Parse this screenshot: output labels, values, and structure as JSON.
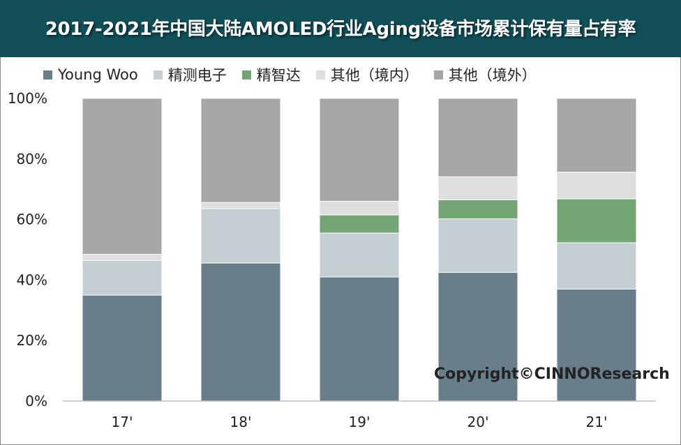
{
  "title": "2017-2021年中国大陆AMOLED行业Aging设备市场累计保有量占有率",
  "copyright": "Copyright©CINNOResearch",
  "colors": {
    "title_bar": "#114f59",
    "young_woo": "#687e8a",
    "jingce": "#c4cfd3",
    "jingzhida": "#74a575",
    "other_domestic": "#dedede",
    "other_foreign": "#a6a6a6"
  },
  "chart_data": {
    "type": "bar",
    "stacked": true,
    "percent": true,
    "categories": [
      "17'",
      "18'",
      "19'",
      "20'",
      "21'"
    ],
    "series": [
      {
        "name": "Young Woo",
        "color": "#687e8a",
        "values": [
          35,
          45.6,
          41,
          42.5,
          37
        ]
      },
      {
        "name": "精测电子",
        "color": "#c4cfd3",
        "values": [
          11.5,
          18,
          14.5,
          17.7,
          15.3
        ]
      },
      {
        "name": "精智达",
        "color": "#74a575",
        "values": [
          0,
          0,
          6,
          6.3,
          14.5
        ]
      },
      {
        "name": "其他（境内）",
        "color": "#dedede",
        "values": [
          2,
          2,
          4.5,
          7.6,
          8.8
        ]
      },
      {
        "name": "其他（境外）",
        "color": "#a6a6a6",
        "values": [
          51.5,
          34.4,
          34,
          25.9,
          24.4
        ]
      }
    ],
    "ylim": [
      0,
      100
    ],
    "yticks": [
      "0%",
      "20%",
      "40%",
      "60%",
      "80%",
      "100%"
    ],
    "grid": false,
    "legend": "top"
  }
}
